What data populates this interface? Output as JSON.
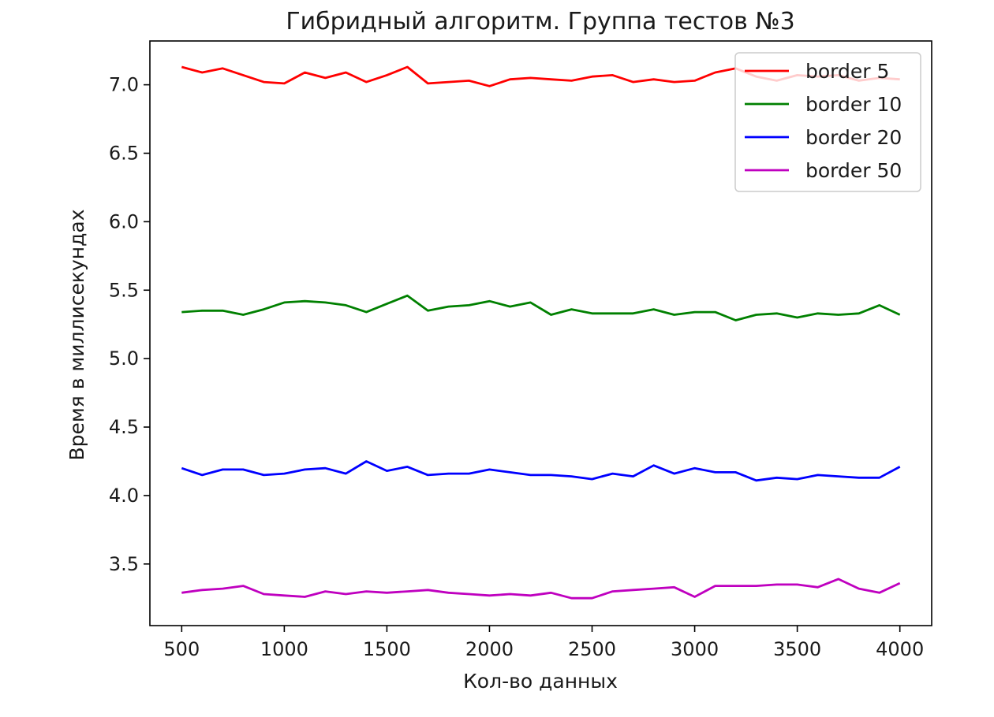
{
  "chart_data": {
    "type": "line",
    "title": "Гибридный алгоритм. Группа тестов №3",
    "xlabel": "Кол-во данных",
    "ylabel": "Время в миллисекундах",
    "xlim": [
      345,
      4155
    ],
    "ylim": [
      3.05,
      7.32
    ],
    "xticks": [
      500,
      1000,
      1500,
      2000,
      2500,
      3000,
      3500,
      4000
    ],
    "yticks": [
      3.5,
      4.0,
      4.5,
      5.0,
      5.5,
      6.0,
      6.5,
      7.0
    ],
    "xtick_labels": [
      "500",
      "1000",
      "1500",
      "2000",
      "2500",
      "3000",
      "3500",
      "4000"
    ],
    "ytick_labels": [
      "3.5",
      "4.0",
      "4.5",
      "5.0",
      "5.5",
      "6.0",
      "6.5",
      "7.0"
    ],
    "grid": false,
    "legend_position": "top-right",
    "x": [
      500,
      600,
      700,
      800,
      900,
      1000,
      1100,
      1200,
      1300,
      1400,
      1500,
      1600,
      1700,
      1800,
      1900,
      2000,
      2100,
      2200,
      2300,
      2400,
      2500,
      2600,
      2700,
      2800,
      2900,
      3000,
      3100,
      3200,
      3300,
      3400,
      3500,
      3600,
      3700,
      3800,
      3900,
      4000
    ],
    "series": [
      {
        "name": "border 5",
        "color": "#ff0000",
        "values": [
          7.13,
          7.09,
          7.12,
          7.07,
          7.02,
          7.01,
          7.09,
          7.05,
          7.09,
          7.02,
          7.07,
          7.13,
          7.01,
          7.02,
          7.03,
          6.99,
          7.04,
          7.05,
          7.04,
          7.03,
          7.06,
          7.07,
          7.02,
          7.04,
          7.02,
          7.03,
          7.09,
          7.12,
          7.06,
          7.03,
          7.07,
          7.06,
          7.07,
          7.03,
          7.05,
          7.04
        ]
      },
      {
        "name": "border 10",
        "color": "#008000",
        "values": [
          5.34,
          5.35,
          5.35,
          5.32,
          5.36,
          5.41,
          5.42,
          5.41,
          5.39,
          5.34,
          5.4,
          5.46,
          5.35,
          5.38,
          5.39,
          5.42,
          5.38,
          5.41,
          5.32,
          5.36,
          5.33,
          5.33,
          5.33,
          5.36,
          5.32,
          5.34,
          5.34,
          5.28,
          5.32,
          5.33,
          5.3,
          5.33,
          5.32,
          5.33,
          5.39,
          5.32
        ]
      },
      {
        "name": "border 20",
        "color": "#0000ff",
        "values": [
          4.2,
          4.15,
          4.19,
          4.19,
          4.15,
          4.16,
          4.19,
          4.2,
          4.16,
          4.25,
          4.18,
          4.21,
          4.15,
          4.16,
          4.16,
          4.19,
          4.17,
          4.15,
          4.15,
          4.14,
          4.12,
          4.16,
          4.14,
          4.22,
          4.16,
          4.2,
          4.17,
          4.17,
          4.11,
          4.13,
          4.12,
          4.15,
          4.14,
          4.13,
          4.13,
          4.21
        ]
      },
      {
        "name": "border 50",
        "color": "#bf00bf",
        "values": [
          3.29,
          3.31,
          3.32,
          3.34,
          3.28,
          3.27,
          3.26,
          3.3,
          3.28,
          3.3,
          3.29,
          3.3,
          3.31,
          3.29,
          3.28,
          3.27,
          3.28,
          3.27,
          3.29,
          3.25,
          3.25,
          3.3,
          3.31,
          3.32,
          3.33,
          3.26,
          3.34,
          3.34,
          3.34,
          3.35,
          3.35,
          3.33,
          3.39,
          3.32,
          3.29,
          3.36
        ]
      }
    ]
  }
}
